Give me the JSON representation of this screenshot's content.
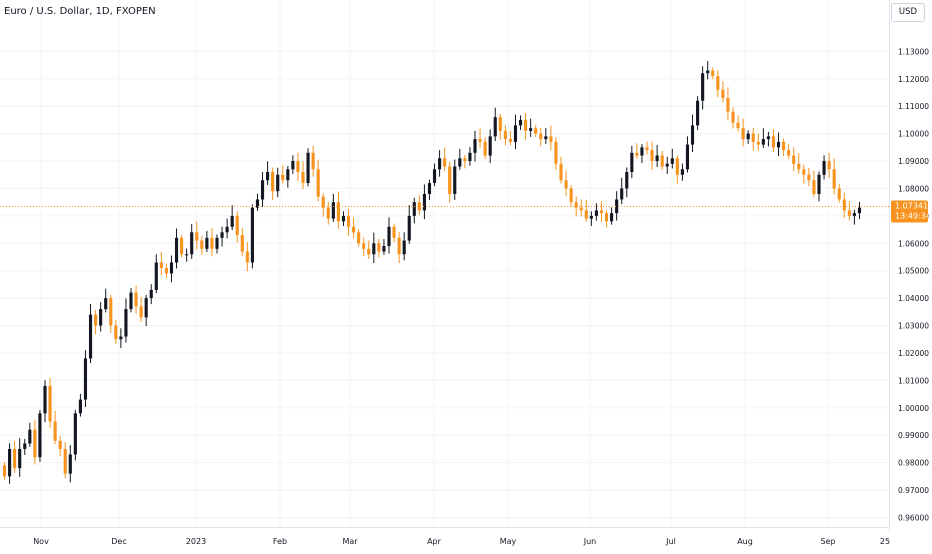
{
  "header": {
    "title": "Euro / U.S. Dollar, 1D, FXOPEN",
    "currency": "USD"
  },
  "colors": {
    "up": "#131722",
    "down": "#f7931e",
    "grid": "#f0f3fa",
    "price_line": "#f7931e",
    "axis_text": "#131722",
    "price_label_bg": "#f7931e"
  },
  "price_label": {
    "price": "1.07341",
    "countdown": "13:49:34"
  },
  "chart_data": {
    "type": "candlestick",
    "symbol": "EURUSD",
    "timeframe": "1D",
    "last_price": 1.07341,
    "ylim": [
      0.955,
      1.135
    ],
    "y_ticks": [
      "0.96000",
      "0.97000",
      "0.98000",
      "0.99000",
      "1.00000",
      "1.01000",
      "1.02000",
      "1.03000",
      "1.04000",
      "1.05000",
      "1.06000",
      "1.07000",
      "1.08000",
      "1.09000",
      "1.10000",
      "1.11000",
      "1.12000",
      "1.13000"
    ],
    "x_ticks": [
      "Nov",
      "Dec",
      "2023",
      "Feb",
      "Mar",
      "Apr",
      "May",
      "Jun",
      "Jul",
      "Aug",
      "Sep",
      "25"
    ],
    "x_start": "2022-10-13",
    "x_end": "2023-09-12",
    "close": [
      0.975,
      0.985,
      0.978,
      0.985,
      0.987,
      0.992,
      0.982,
      0.998,
      1.008,
      0.995,
      0.988,
      0.985,
      0.976,
      0.983,
      0.998,
      1.003,
      1.018,
      1.034,
      1.03,
      1.036,
      1.04,
      1.03,
      1.025,
      1.026,
      1.036,
      1.042,
      1.037,
      1.033,
      1.04,
      1.043,
      1.053,
      1.051,
      1.049,
      1.053,
      1.062,
      1.056,
      1.056,
      1.064,
      1.061,
      1.058,
      1.062,
      1.058,
      1.062,
      1.064,
      1.066,
      1.07,
      1.063,
      1.057,
      1.053,
      1.073,
      1.076,
      1.083,
      1.086,
      1.079,
      1.085,
      1.083,
      1.087,
      1.09,
      1.086,
      1.082,
      1.093,
      1.087,
      1.077,
      1.073,
      1.069,
      1.075,
      1.068,
      1.07,
      1.066,
      1.064,
      1.06,
      1.058,
      1.056,
      1.06,
      1.057,
      1.059,
      1.066,
      1.062,
      1.056,
      1.061,
      1.07,
      1.075,
      1.072,
      1.078,
      1.082,
      1.087,
      1.091,
      1.088,
      1.078,
      1.088,
      1.091,
      1.09,
      1.093,
      1.098,
      1.097,
      1.092,
      1.099,
      1.106,
      1.101,
      1.098,
      1.097,
      1.103,
      1.105,
      1.101,
      1.102,
      1.1,
      1.098,
      1.099,
      1.097,
      1.089,
      1.083,
      1.08,
      1.075,
      1.073,
      1.072,
      1.069,
      1.07,
      1.072,
      1.071,
      1.068,
      1.071,
      1.076,
      1.08,
      1.086,
      1.093,
      1.092,
      1.095,
      1.094,
      1.09,
      1.092,
      1.088,
      1.089,
      1.091,
      1.085,
      1.087,
      1.096,
      1.103,
      1.112,
      1.122,
      1.123,
      1.121,
      1.116,
      1.113,
      1.108,
      1.104,
      1.102,
      1.098,
      1.1,
      1.097,
      1.096,
      1.098,
      1.099,
      1.095,
      1.097,
      1.094,
      1.092,
      1.089,
      1.087,
      1.085,
      1.083,
      1.078,
      1.085,
      1.09,
      1.087,
      1.08,
      1.076,
      1.072,
      1.07,
      1.071,
      1.073
    ]
  }
}
